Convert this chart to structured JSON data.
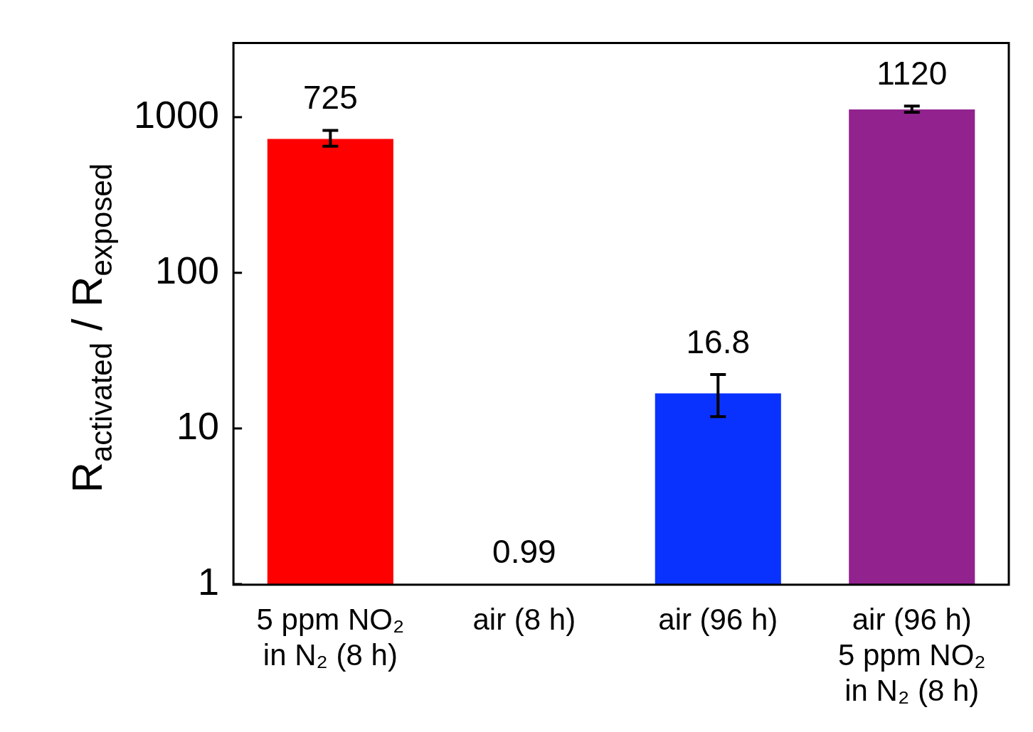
{
  "chart_data": {
    "type": "bar",
    "ylabel": "R$_{activated}$ / R$_{exposed}$",
    "categories": [
      "5 ppm NO₂\nin N₂ (8 h)",
      "air (8 h)",
      "air (96 h)",
      "air (96 h)\n5 ppm NO₂\nin N₂ (8 h)"
    ],
    "values": [
      725,
      0.99,
      16.8,
      1120
    ],
    "colors": [
      "#ff0000",
      "#808080",
      "#0a32ff",
      "#92228e"
    ],
    "errors": [
      [
        650,
        823
      ],
      null,
      [
        11.9,
        22.2
      ],
      [
        1075,
        1178
      ]
    ],
    "log": true,
    "ylim": [
      0.99,
      3000
    ],
    "yticks": [
      1,
      10,
      100,
      1000
    ],
    "data_labels": true,
    "grid": false,
    "legend": false
  }
}
